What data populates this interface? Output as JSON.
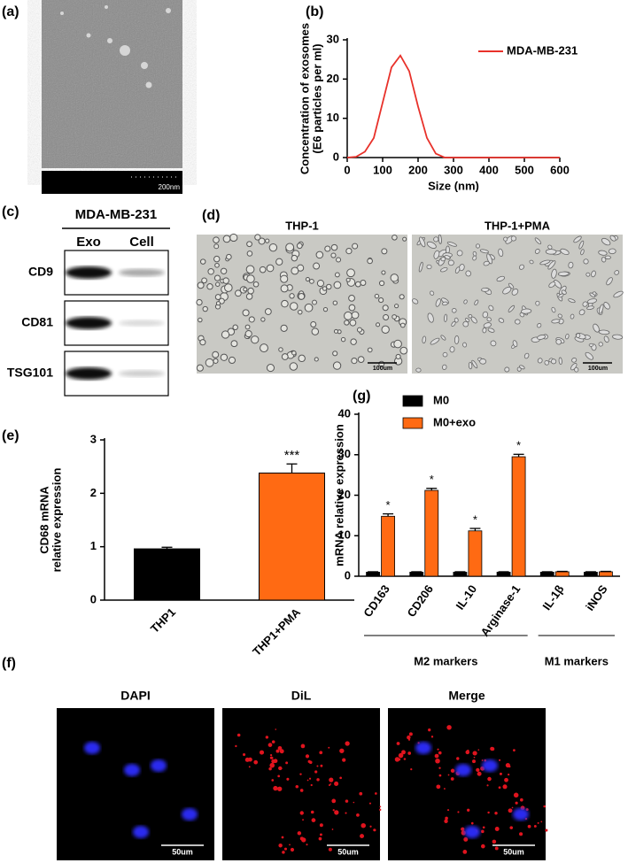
{
  "panels": {
    "a": {
      "label": "(a)",
      "scale": "200nm"
    },
    "c": {
      "label": "(c)",
      "header": "MDA-MB-231",
      "columns": [
        "Exo",
        "Cell"
      ],
      "rows": [
        "CD9",
        "CD81",
        "TSG101"
      ]
    },
    "d": {
      "label": "(d)",
      "images": [
        "THP-1",
        "THP-1+PMA"
      ],
      "scale": "100um"
    },
    "f": {
      "label": "(f)",
      "images": [
        "DAPI",
        "DiL",
        "Merge"
      ],
      "scale": "50um"
    }
  },
  "chart_data": [
    {
      "panel": "(b)",
      "type": "line",
      "xlabel": "Size (nm)",
      "ylabel": [
        "Concentration of exosomes",
        "(E6 particles per ml)"
      ],
      "x": [
        0,
        25,
        50,
        75,
        100,
        125,
        150,
        175,
        200,
        225,
        250,
        275,
        300,
        400,
        500,
        600
      ],
      "series": [
        {
          "name": "MDA-MB-231",
          "color": "#e8312a",
          "values": [
            0,
            0.2,
            1.5,
            5,
            14,
            23,
            26,
            22,
            13,
            5,
            1,
            0,
            0,
            0,
            0,
            0
          ]
        }
      ],
      "xlim": [
        0,
        600
      ],
      "ylim": [
        0,
        30
      ],
      "xticks": [
        0,
        100,
        200,
        300,
        400,
        500,
        600
      ],
      "yticks": [
        0,
        10,
        20,
        30
      ],
      "legend": "upper right"
    },
    {
      "panel": "(e)",
      "type": "bar",
      "ylabel": [
        "CD68 mRNA",
        "relative expression"
      ],
      "categories": [
        "THP1",
        "THP1+PMA"
      ],
      "values": [
        0.96,
        2.38
      ],
      "errors": [
        0.03,
        0.17
      ],
      "colors": [
        "#000000",
        "#ff6a13"
      ],
      "annotations": [
        null,
        "***"
      ],
      "ylim": [
        0,
        3
      ],
      "yticks": [
        0,
        1,
        2,
        3
      ]
    },
    {
      "panel": "(g)",
      "type": "bar",
      "ylabel": "mRNA relative expression",
      "categories": [
        "CD163",
        "CD206",
        "IL-10",
        "Arginase-1",
        "IL-1β",
        "iNOS"
      ],
      "series": [
        {
          "name": "M0",
          "color": "#000000",
          "values": [
            1,
            1,
            1,
            1,
            1,
            1
          ],
          "errors": [
            0.1,
            0.1,
            0.1,
            0.1,
            0.1,
            0.1
          ]
        },
        {
          "name": "M0+exo",
          "color": "#ff6a13",
          "values": [
            14.8,
            21.2,
            11.2,
            29.5,
            1.1,
            1.1
          ],
          "errors": [
            0.6,
            0.5,
            0.6,
            0.6,
            0.1,
            0.1
          ]
        }
      ],
      "annotations": [
        "*",
        "*",
        "*",
        "*",
        null,
        null
      ],
      "groups": [
        "M2 markers",
        "M1 markers"
      ],
      "ylim": [
        0,
        40
      ],
      "yticks": [
        0,
        10,
        20,
        30,
        40
      ],
      "legend": "upper left"
    }
  ]
}
